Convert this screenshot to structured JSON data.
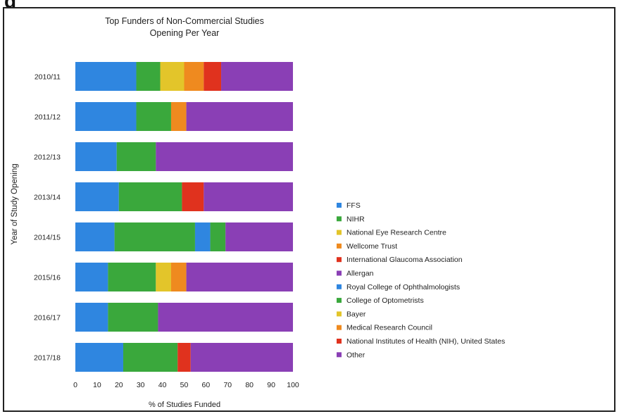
{
  "header": {
    "title_fragment": "g"
  },
  "chart_data": {
    "type": "bar",
    "orientation": "horizontal",
    "stacked": true,
    "title": "Top Funders of Non-Commercial Studies Opening Per Year",
    "title_lines": [
      "Top Funders of Non-Commercial Studies",
      "Opening Per Year"
    ],
    "xlabel": "% of Studies Funded",
    "ylabel": "Year of Study Opening",
    "xlim": [
      0,
      100
    ],
    "xticks": [
      "0",
      "10",
      "20",
      "30",
      "40",
      "50",
      "60",
      "70",
      "80",
      "90",
      "100"
    ],
    "categories": [
      "2010/11",
      "2011/12",
      "2012/13",
      "2013/14",
      "2014/15",
      "2015/16",
      "2016/17",
      "2017/18"
    ],
    "legend_position": "right",
    "grid": false,
    "series": [
      {
        "name": "FFS",
        "color": "#2f86e0",
        "values": [
          28,
          28,
          19,
          20,
          18,
          15,
          15,
          22
        ]
      },
      {
        "name": "NIHR",
        "color": "#3aa83c",
        "values": [
          11,
          16,
          18,
          29,
          37,
          22,
          23,
          25
        ]
      },
      {
        "name": "National Eye Research Centre",
        "color": "#e3c52a",
        "values": [
          11,
          0,
          0,
          0,
          0,
          7,
          0,
          0
        ]
      },
      {
        "name": "Wellcome Trust",
        "color": "#ef8a1f",
        "values": [
          9,
          7,
          0,
          0,
          0,
          7,
          0,
          0
        ]
      },
      {
        "name": "International Glaucoma Association",
        "color": "#e0321e",
        "values": [
          8,
          0,
          0,
          10,
          0,
          0,
          0,
          6
        ]
      },
      {
        "name": "Allergan",
        "color": "#8a3fb5",
        "values": [
          0,
          0,
          0,
          0,
          0,
          0,
          0,
          0
        ]
      },
      {
        "name": "Royal College of Ophthalmologists",
        "color": "#2f86e0",
        "values": [
          0,
          0,
          0,
          0,
          7,
          0,
          0,
          0
        ]
      },
      {
        "name": "College of Optometrists",
        "color": "#3aa83c",
        "values": [
          0,
          0,
          0,
          0,
          7,
          0,
          0,
          0
        ]
      },
      {
        "name": "Bayer",
        "color": "#e3c52a",
        "values": [
          0,
          0,
          0,
          0,
          0,
          0,
          0,
          0
        ]
      },
      {
        "name": "Medical Research Council",
        "color": "#ef8a1f",
        "values": [
          0,
          0,
          0,
          0,
          0,
          0,
          0,
          0
        ]
      },
      {
        "name": "National Institutes of Health (NIH), United States",
        "color": "#e0321e",
        "values": [
          0,
          0,
          0,
          0,
          0,
          0,
          0,
          0
        ]
      },
      {
        "name": "Other",
        "color": "#8a3fb5",
        "values": [
          33,
          49,
          63,
          41,
          31,
          49,
          62,
          47
        ]
      }
    ]
  }
}
